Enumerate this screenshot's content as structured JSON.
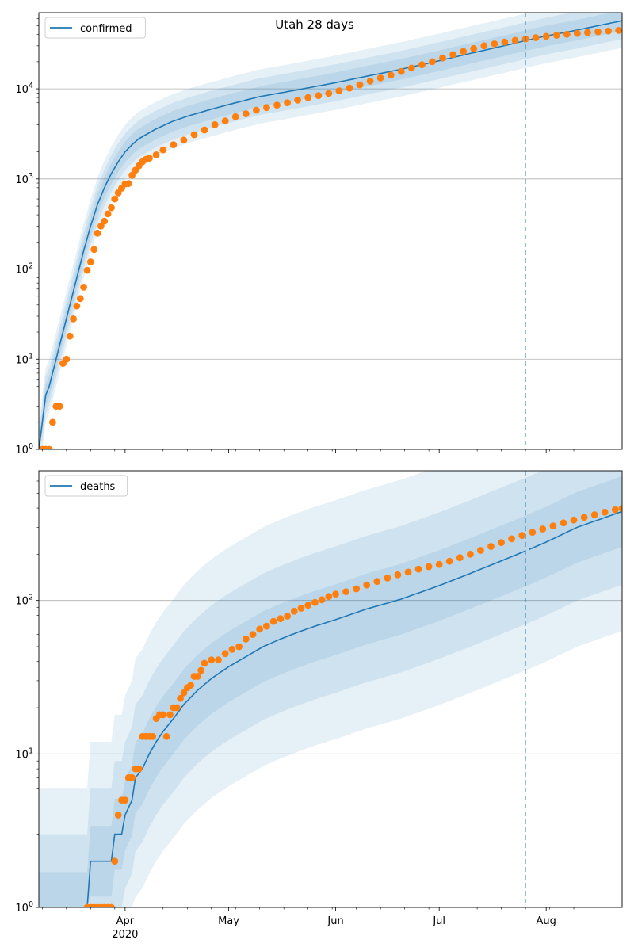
{
  "title": "Utah 28 days",
  "colors": {
    "model": "#1f77b4",
    "observed": "#ff7f0e",
    "band": "#1f77b4",
    "grid": "#b0b0b0",
    "cutoff": "#1f77b4"
  },
  "chart_data": [
    {
      "type": "line",
      "title": "Utah 28 days",
      "legend": [
        "confirmed"
      ],
      "legend_position": "top-left",
      "y_scale": "log",
      "ylim": [
        1,
        70000
      ],
      "xlim": [
        "2020-03-07",
        "2020-08-23"
      ],
      "y_ticks": [
        {
          "value": 1,
          "base": "10",
          "exp": "0"
        },
        {
          "value": 10,
          "base": "10",
          "exp": "1"
        },
        {
          "value": 100,
          "base": "10",
          "exp": "2"
        },
        {
          "value": 1000,
          "base": "10",
          "exp": "3"
        },
        {
          "value": 10000,
          "base": "10",
          "exp": "4"
        }
      ],
      "grid": "horizontal",
      "forecast_start": "2020-07-26",
      "series": [
        {
          "name": "confirmed",
          "kind": "model",
          "x": [
            "2020-03-07",
            "2020-03-09",
            "2020-03-10",
            "2020-03-12",
            "2020-03-14",
            "2020-03-16",
            "2020-03-18",
            "2020-03-20",
            "2020-03-22",
            "2020-03-24",
            "2020-03-26",
            "2020-03-28",
            "2020-03-30",
            "2020-04-01",
            "2020-04-03",
            "2020-04-05",
            "2020-04-07",
            "2020-04-10",
            "2020-04-15",
            "2020-04-20",
            "2020-04-25",
            "2020-05-01",
            "2020-05-10",
            "2020-05-20",
            "2020-06-01",
            "2020-06-10",
            "2020-06-20",
            "2020-07-01",
            "2020-07-10",
            "2020-07-20",
            "2020-07-26",
            "2020-08-01",
            "2020-08-10",
            "2020-08-23"
          ],
          "y": [
            1,
            4,
            5,
            10,
            20,
            40,
            80,
            160,
            300,
            520,
            800,
            1150,
            1550,
            2000,
            2400,
            2800,
            3100,
            3600,
            4400,
            5100,
            5800,
            6700,
            8200,
            9600,
            11700,
            13800,
            16500,
            20500,
            24700,
            30200,
            34200,
            38600,
            44900,
            57000
          ]
        },
        {
          "name": "confirmed (observed)",
          "kind": "observed",
          "points": [
            [
              "2020-03-08",
              1
            ],
            [
              "2020-03-09",
              1
            ],
            [
              "2020-03-10",
              1
            ],
            [
              "2020-03-11",
              2
            ],
            [
              "2020-03-12",
              3
            ],
            [
              "2020-03-13",
              3
            ],
            [
              "2020-03-14",
              9
            ],
            [
              "2020-03-15",
              10
            ],
            [
              "2020-03-16",
              18
            ],
            [
              "2020-03-17",
              28
            ],
            [
              "2020-03-18",
              39
            ],
            [
              "2020-03-19",
              47
            ],
            [
              "2020-03-20",
              63
            ],
            [
              "2020-03-21",
              97
            ],
            [
              "2020-03-22",
              120
            ],
            [
              "2020-03-23",
              165
            ],
            [
              "2020-03-24",
              250
            ],
            [
              "2020-03-25",
              300
            ],
            [
              "2020-03-26",
              340
            ],
            [
              "2020-03-27",
              410
            ],
            [
              "2020-03-28",
              480
            ],
            [
              "2020-03-29",
              600
            ],
            [
              "2020-03-30",
              700
            ],
            [
              "2020-03-31",
              790
            ],
            [
              "2020-04-01",
              880
            ],
            [
              "2020-04-02",
              890
            ],
            [
              "2020-04-03",
              1100
            ],
            [
              "2020-04-04",
              1250
            ],
            [
              "2020-04-05",
              1400
            ],
            [
              "2020-04-06",
              1550
            ],
            [
              "2020-04-07",
              1650
            ],
            [
              "2020-04-08",
              1700
            ],
            [
              "2020-04-10",
              1850
            ],
            [
              "2020-04-12",
              2100
            ],
            [
              "2020-04-15",
              2400
            ],
            [
              "2020-04-18",
              2700
            ],
            [
              "2020-04-21",
              3100
            ],
            [
              "2020-04-24",
              3500
            ],
            [
              "2020-04-27",
              4000
            ],
            [
              "2020-04-30",
              4400
            ],
            [
              "2020-05-03",
              4900
            ],
            [
              "2020-05-06",
              5300
            ],
            [
              "2020-05-09",
              5800
            ],
            [
              "2020-05-12",
              6200
            ],
            [
              "2020-05-15",
              6600
            ],
            [
              "2020-05-18",
              7000
            ],
            [
              "2020-05-21",
              7500
            ],
            [
              "2020-05-24",
              8000
            ],
            [
              "2020-05-27",
              8400
            ],
            [
              "2020-05-30",
              8900
            ],
            [
              "2020-06-02",
              9500
            ],
            [
              "2020-06-05",
              10200
            ],
            [
              "2020-06-08",
              11100
            ],
            [
              "2020-06-11",
              12200
            ],
            [
              "2020-06-14",
              13200
            ],
            [
              "2020-06-17",
              14200
            ],
            [
              "2020-06-20",
              15600
            ],
            [
              "2020-06-23",
              17000
            ],
            [
              "2020-06-26",
              18500
            ],
            [
              "2020-06-29",
              20000
            ],
            [
              "2020-07-02",
              22000
            ],
            [
              "2020-07-05",
              24000
            ],
            [
              "2020-07-08",
              26000
            ],
            [
              "2020-07-11",
              28000
            ],
            [
              "2020-07-14",
              30000
            ],
            [
              "2020-07-17",
              31500
            ],
            [
              "2020-07-20",
              33000
            ],
            [
              "2020-07-23",
              34500
            ],
            [
              "2020-07-26",
              35800
            ],
            [
              "2020-07-29",
              37000
            ],
            [
              "2020-08-01",
              38200
            ],
            [
              "2020-08-04",
              39300
            ],
            [
              "2020-08-07",
              40300
            ],
            [
              "2020-08-10",
              41300
            ],
            [
              "2020-08-13",
              42200
            ],
            [
              "2020-08-16",
              43000
            ],
            [
              "2020-08-19",
              43800
            ],
            [
              "2020-08-22",
              44500
            ]
          ]
        }
      ]
    },
    {
      "type": "line",
      "legend": [
        "deaths"
      ],
      "legend_position": "top-left",
      "y_scale": "log",
      "ylim": [
        1,
        700
      ],
      "xlim": [
        "2020-03-07",
        "2020-08-23"
      ],
      "y_ticks": [
        {
          "value": 1,
          "base": "10",
          "exp": "0"
        },
        {
          "value": 10,
          "base": "10",
          "exp": "1"
        },
        {
          "value": 100,
          "base": "10",
          "exp": "2"
        }
      ],
      "x_ticks": [
        {
          "date": "2020-04-01",
          "label": "Apr",
          "sublabel": "2020"
        },
        {
          "date": "2020-05-01",
          "label": "May"
        },
        {
          "date": "2020-06-01",
          "label": "Jun"
        },
        {
          "date": "2020-07-01",
          "label": "Jul"
        },
        {
          "date": "2020-08-01",
          "label": "Aug"
        }
      ],
      "grid": "horizontal",
      "forecast_start": "2020-07-26",
      "series": [
        {
          "name": "deaths",
          "kind": "model",
          "x": [
            "2020-03-07",
            "2020-03-21",
            "2020-03-22",
            "2020-03-28",
            "2020-03-29",
            "2020-03-31",
            "2020-04-01",
            "2020-04-03",
            "2020-04-04",
            "2020-04-06",
            "2020-04-08",
            "2020-04-10",
            "2020-04-12",
            "2020-04-15",
            "2020-04-18",
            "2020-04-22",
            "2020-04-26",
            "2020-05-01",
            "2020-05-06",
            "2020-05-11",
            "2020-05-16",
            "2020-05-21",
            "2020-05-26",
            "2020-06-01",
            "2020-06-10",
            "2020-06-20",
            "2020-07-01",
            "2020-07-10",
            "2020-07-20",
            "2020-07-26",
            "2020-08-01",
            "2020-08-10",
            "2020-08-23"
          ],
          "y": [
            1,
            1,
            2,
            2,
            3,
            3,
            4,
            5,
            7,
            8,
            10,
            12,
            14,
            17,
            21,
            26,
            31,
            37,
            43,
            50,
            56,
            62,
            68,
            75,
            88,
            102,
            125,
            150,
            185,
            210,
            240,
            300,
            380
          ]
        },
        {
          "name": "deaths (observed)",
          "kind": "observed",
          "points": [
            [
              "2020-03-21",
              1
            ],
            [
              "2020-03-22",
              1
            ],
            [
              "2020-03-23",
              1
            ],
            [
              "2020-03-24",
              1
            ],
            [
              "2020-03-25",
              1
            ],
            [
              "2020-03-26",
              1
            ],
            [
              "2020-03-27",
              1
            ],
            [
              "2020-03-28",
              1
            ],
            [
              "2020-03-29",
              2
            ],
            [
              "2020-03-30",
              4
            ],
            [
              "2020-03-31",
              5
            ],
            [
              "2020-04-01",
              5
            ],
            [
              "2020-04-02",
              7
            ],
            [
              "2020-04-03",
              7
            ],
            [
              "2020-04-04",
              8
            ],
            [
              "2020-04-05",
              8
            ],
            [
              "2020-04-06",
              13
            ],
            [
              "2020-04-07",
              13
            ],
            [
              "2020-04-08",
              13
            ],
            [
              "2020-04-09",
              13
            ],
            [
              "2020-04-10",
              17
            ],
            [
              "2020-04-11",
              18
            ],
            [
              "2020-04-12",
              18
            ],
            [
              "2020-04-13",
              13
            ],
            [
              "2020-04-14",
              18
            ],
            [
              "2020-04-15",
              20
            ],
            [
              "2020-04-16",
              20
            ],
            [
              "2020-04-17",
              23
            ],
            [
              "2020-04-18",
              25
            ],
            [
              "2020-04-19",
              27
            ],
            [
              "2020-04-20",
              28
            ],
            [
              "2020-04-21",
              32
            ],
            [
              "2020-04-22",
              32
            ],
            [
              "2020-04-23",
              35
            ],
            [
              "2020-04-24",
              39
            ],
            [
              "2020-04-26",
              41
            ],
            [
              "2020-04-28",
              41
            ],
            [
              "2020-04-30",
              45
            ],
            [
              "2020-05-02",
              48
            ],
            [
              "2020-05-04",
              50
            ],
            [
              "2020-05-06",
              56
            ],
            [
              "2020-05-08",
              60
            ],
            [
              "2020-05-10",
              65
            ],
            [
              "2020-05-12",
              68
            ],
            [
              "2020-05-14",
              73
            ],
            [
              "2020-05-16",
              76
            ],
            [
              "2020-05-18",
              79
            ],
            [
              "2020-05-20",
              85
            ],
            [
              "2020-05-22",
              89
            ],
            [
              "2020-05-24",
              93
            ],
            [
              "2020-05-26",
              97
            ],
            [
              "2020-05-28",
              101
            ],
            [
              "2020-05-30",
              106
            ],
            [
              "2020-06-01",
              110
            ],
            [
              "2020-06-04",
              114
            ],
            [
              "2020-06-07",
              119
            ],
            [
              "2020-06-10",
              126
            ],
            [
              "2020-06-13",
              133
            ],
            [
              "2020-06-16",
              140
            ],
            [
              "2020-06-19",
              147
            ],
            [
              "2020-06-22",
              153
            ],
            [
              "2020-06-25",
              160
            ],
            [
              "2020-06-28",
              166
            ],
            [
              "2020-07-01",
              172
            ],
            [
              "2020-07-04",
              180
            ],
            [
              "2020-07-07",
              190
            ],
            [
              "2020-07-10",
              200
            ],
            [
              "2020-07-13",
              212
            ],
            [
              "2020-07-16",
              225
            ],
            [
              "2020-07-19",
              238
            ],
            [
              "2020-07-22",
              252
            ],
            [
              "2020-07-25",
              265
            ],
            [
              "2020-07-28",
              278
            ],
            [
              "2020-07-31",
              292
            ],
            [
              "2020-08-03",
              306
            ],
            [
              "2020-08-06",
              320
            ],
            [
              "2020-08-09",
              334
            ],
            [
              "2020-08-12",
              348
            ],
            [
              "2020-08-15",
              362
            ],
            [
              "2020-08-18",
              376
            ],
            [
              "2020-08-21",
              390
            ],
            [
              "2020-08-23",
              398
            ]
          ]
        }
      ]
    }
  ]
}
